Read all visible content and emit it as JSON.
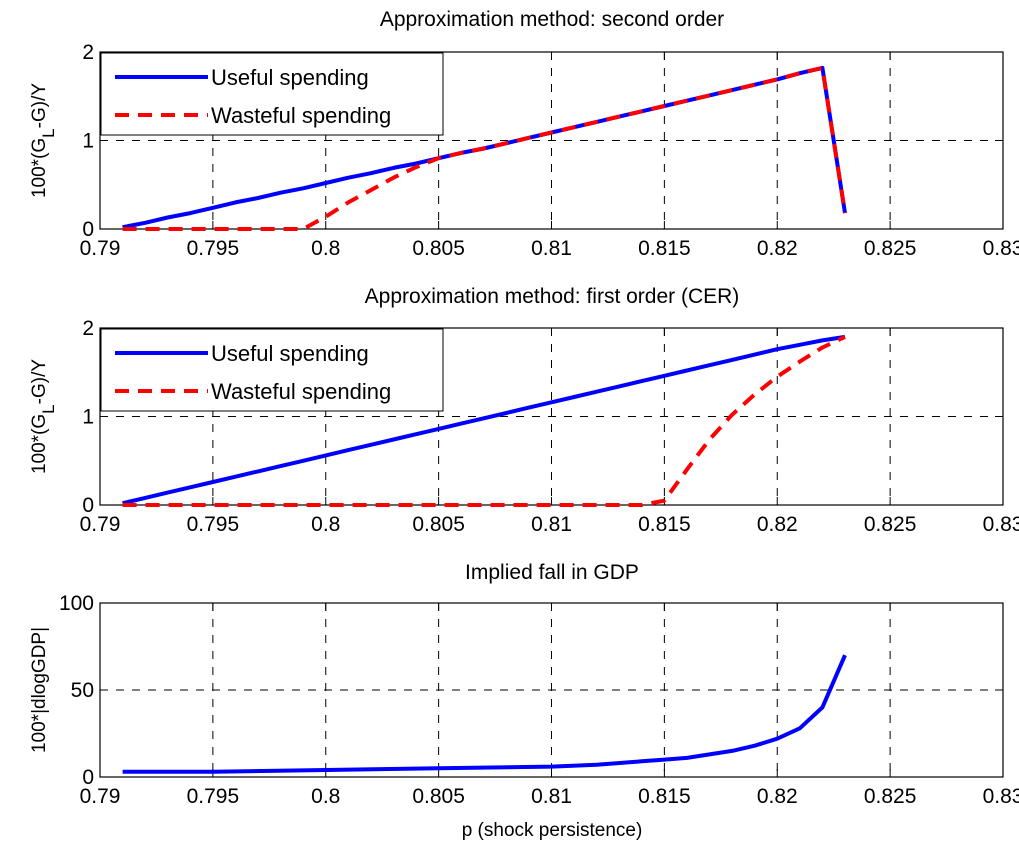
{
  "figure": {
    "xlabel": "p (shock persistence)"
  },
  "chart_data": [
    {
      "type": "line",
      "title": "Approximation method: second order",
      "ylabel": "100*(G",
      "ylabel_sub": "L",
      "ylabel_end": "-G)/Y",
      "xlim": [
        0.79,
        0.83
      ],
      "ylim": [
        0,
        2
      ],
      "xticks": [
        "0.79",
        "0.795",
        "0.8",
        "0.805",
        "0.81",
        "0.815",
        "0.82",
        "0.825",
        "0.83"
      ],
      "yticks": [
        "0",
        "1",
        "2"
      ],
      "grid": true,
      "legend_position": "top-left",
      "series": [
        {
          "name": "Useful spending",
          "color": "#0000ff",
          "style": "solid",
          "x": [
            0.791,
            0.792,
            0.793,
            0.794,
            0.795,
            0.796,
            0.797,
            0.798,
            0.799,
            0.8,
            0.801,
            0.802,
            0.803,
            0.804,
            0.805,
            0.806,
            0.807,
            0.808,
            0.809,
            0.81,
            0.811,
            0.812,
            0.813,
            0.814,
            0.815,
            0.816,
            0.817,
            0.818,
            0.819,
            0.82,
            0.821,
            0.822,
            0.823
          ],
          "y": [
            0.02,
            0.07,
            0.13,
            0.18,
            0.24,
            0.3,
            0.35,
            0.41,
            0.46,
            0.52,
            0.58,
            0.63,
            0.69,
            0.74,
            0.8,
            0.86,
            0.91,
            0.97,
            1.03,
            1.09,
            1.15,
            1.21,
            1.27,
            1.33,
            1.39,
            1.45,
            1.51,
            1.57,
            1.63,
            1.69,
            1.76,
            1.82,
            0.18
          ]
        },
        {
          "name": "Wasteful spending",
          "color": "#ff0000",
          "style": "dashed",
          "x": [
            0.791,
            0.792,
            0.793,
            0.794,
            0.795,
            0.796,
            0.797,
            0.798,
            0.799,
            0.8,
            0.801,
            0.802,
            0.803,
            0.804,
            0.805,
            0.806,
            0.807,
            0.808,
            0.809,
            0.81,
            0.811,
            0.812,
            0.813,
            0.814,
            0.815,
            0.816,
            0.817,
            0.818,
            0.819,
            0.82,
            0.821,
            0.822,
            0.823
          ],
          "y": [
            0,
            0,
            0,
            0,
            0,
            0,
            0,
            0,
            0,
            0.14,
            0.3,
            0.44,
            0.58,
            0.7,
            0.8,
            0.86,
            0.91,
            0.97,
            1.03,
            1.09,
            1.15,
            1.21,
            1.27,
            1.33,
            1.39,
            1.45,
            1.51,
            1.57,
            1.63,
            1.69,
            1.76,
            1.82,
            0.18
          ]
        }
      ]
    },
    {
      "type": "line",
      "title": "Approximation method: first order (CER)",
      "ylabel": "100*(G",
      "ylabel_sub": "L",
      "ylabel_end": "-G)/Y",
      "xlim": [
        0.79,
        0.83
      ],
      "ylim": [
        0,
        2
      ],
      "xticks": [
        "0.79",
        "0.795",
        "0.8",
        "0.805",
        "0.81",
        "0.815",
        "0.82",
        "0.825",
        "0.83"
      ],
      "yticks": [
        "0",
        "1",
        "2"
      ],
      "grid": true,
      "legend_position": "top-left",
      "series": [
        {
          "name": "Useful spending",
          "color": "#0000ff",
          "style": "solid",
          "x": [
            0.791,
            0.792,
            0.793,
            0.794,
            0.795,
            0.796,
            0.797,
            0.798,
            0.799,
            0.8,
            0.801,
            0.802,
            0.803,
            0.804,
            0.805,
            0.806,
            0.807,
            0.808,
            0.809,
            0.81,
            0.811,
            0.812,
            0.813,
            0.814,
            0.815,
            0.816,
            0.817,
            0.818,
            0.819,
            0.82,
            0.821,
            0.822,
            0.823
          ],
          "y": [
            0.02,
            0.08,
            0.14,
            0.2,
            0.26,
            0.32,
            0.38,
            0.44,
            0.5,
            0.56,
            0.62,
            0.68,
            0.74,
            0.8,
            0.86,
            0.92,
            0.98,
            1.04,
            1.1,
            1.16,
            1.22,
            1.28,
            1.34,
            1.4,
            1.46,
            1.52,
            1.58,
            1.64,
            1.7,
            1.76,
            1.81,
            1.86,
            1.9
          ]
        },
        {
          "name": "Wasteful spending",
          "color": "#ff0000",
          "style": "dashed",
          "x": [
            0.791,
            0.795,
            0.8,
            0.805,
            0.81,
            0.813,
            0.814,
            0.815,
            0.816,
            0.817,
            0.818,
            0.819,
            0.82,
            0.821,
            0.822,
            0.823
          ],
          "y": [
            0,
            0,
            0,
            0,
            0,
            0,
            0,
            0.05,
            0.4,
            0.74,
            1.02,
            1.25,
            1.45,
            1.62,
            1.78,
            1.9
          ]
        }
      ]
    },
    {
      "type": "line",
      "title": "Implied fall in GDP",
      "ylabel": "100*|dlogGDP|",
      "xlabel": "p (shock persistence)",
      "xlim": [
        0.79,
        0.83
      ],
      "ylim": [
        0,
        100
      ],
      "xticks": [
        "0.79",
        "0.795",
        "0.8",
        "0.805",
        "0.81",
        "0.815",
        "0.82",
        "0.825",
        "0.83"
      ],
      "yticks": [
        "0",
        "50",
        "100"
      ],
      "grid": true,
      "series": [
        {
          "color": "#0000ff",
          "style": "solid",
          "x": [
            0.791,
            0.795,
            0.8,
            0.805,
            0.81,
            0.812,
            0.814,
            0.815,
            0.816,
            0.817,
            0.818,
            0.819,
            0.82,
            0.821,
            0.822,
            0.823
          ],
          "y": [
            3,
            3,
            4,
            5,
            6,
            7,
            9,
            10,
            11,
            13,
            15,
            18,
            22,
            28,
            40,
            70
          ]
        }
      ]
    }
  ]
}
